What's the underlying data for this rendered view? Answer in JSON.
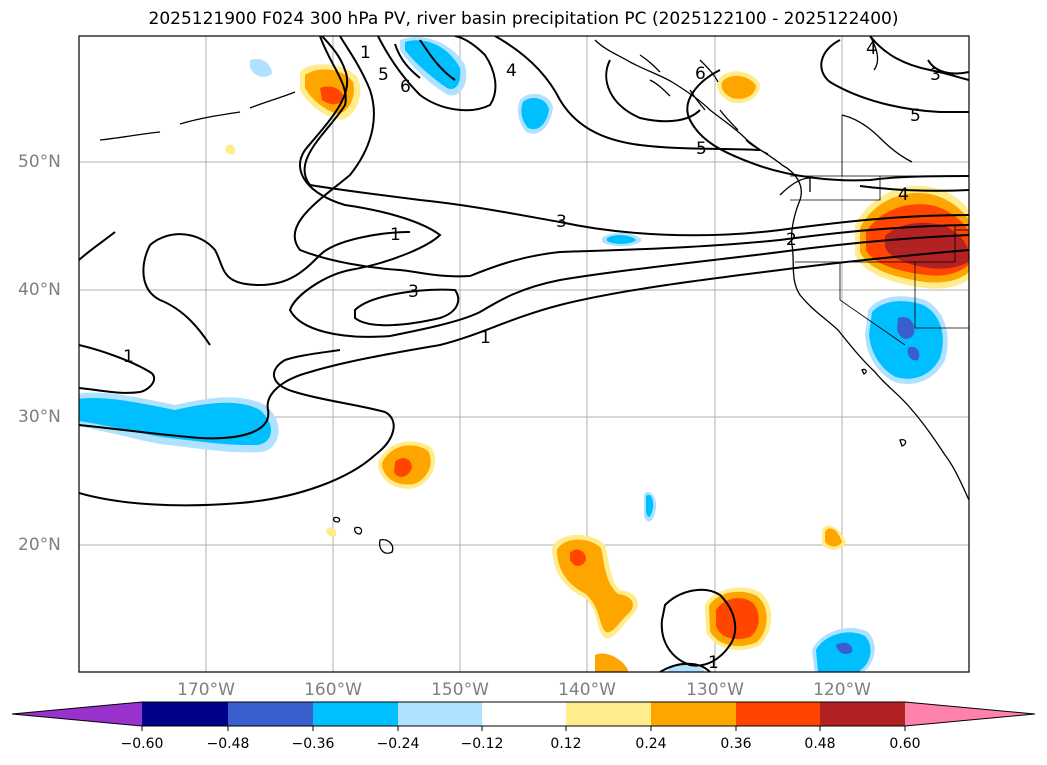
{
  "title": "2025121900 F024 300 hPa PV, river basin precipitation PC (2025122100 - 2025122400)",
  "map": {
    "projection": "PlateCarree",
    "lon_range": [
      -180,
      -110
    ],
    "lat_range": [
      10,
      60
    ],
    "lat_labels": [
      "50°N",
      "40°N",
      "30°N",
      "20°N"
    ],
    "lon_labels": [
      "170°W",
      "160°W",
      "150°W",
      "140°W",
      "130°W",
      "120°W"
    ],
    "gridlines": true,
    "contour_field": "300 hPa PV",
    "contour_labels": [
      "1",
      "1",
      "1",
      "1",
      "1",
      "2",
      "3",
      "3",
      "4",
      "4",
      "4",
      "5",
      "5",
      "5",
      "6",
      "6",
      "3"
    ]
  },
  "colorbar": {
    "ticks": [
      "−0.60",
      "−0.48",
      "−0.36",
      "−0.24",
      "−0.12",
      "0.12",
      "0.24",
      "0.36",
      "0.48",
      "0.60"
    ],
    "colors": {
      "under": "#9932cc",
      "b1": "#00008b",
      "b2": "#3a5fcd",
      "b3": "#00bfff",
      "b4": "#b0e2ff",
      "mid": "#ffffff",
      "p1": "#ffec8b",
      "p2": "#ffa500",
      "p3": "#ff4500",
      "p4": "#b22222",
      "over": "#ff82ab"
    }
  }
}
